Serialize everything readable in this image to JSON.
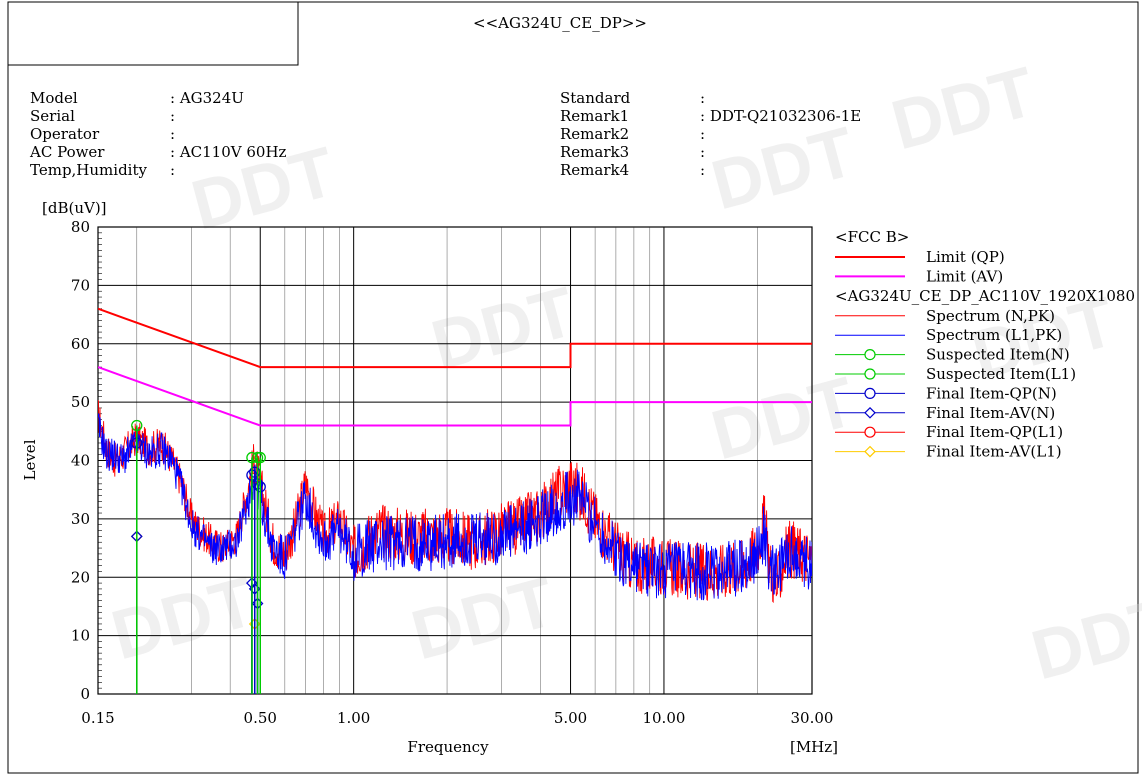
{
  "header": {
    "title": "<<AG324U_CE_DP>>"
  },
  "info_left": [
    {
      "label": "Model",
      "value": ": AG324U"
    },
    {
      "label": "Serial",
      "value": ":"
    },
    {
      "label": "Operator",
      "value": ":"
    },
    {
      "label": "AC Power",
      "value": ": AC110V 60Hz"
    },
    {
      "label": "Temp,Humidity",
      "value": ":"
    }
  ],
  "info_right": [
    {
      "label": "Standard",
      "value": ":"
    },
    {
      "label": "Remark1",
      "value": ": DDT-Q21032306-1E"
    },
    {
      "label": "Remark2",
      "value": ":"
    },
    {
      "label": "Remark3",
      "value": ":"
    },
    {
      "label": "Remark4",
      "value": ":"
    }
  ],
  "watermark": "DDT",
  "colors": {
    "limit_qp": "#ff0000",
    "limit_av": "#ff00ff",
    "spectrum_n": "#ff0000",
    "spectrum_l1": "#0000ff",
    "suspected": "#00cc00",
    "final_qp_n": "#0000cc",
    "final_av_n": "#0000cc",
    "final_qp_l1": "#ff0000",
    "final_av_l1": "#ffcc00"
  },
  "chart_data": {
    "type": "line",
    "xscale": "log",
    "xlim": [
      0.15,
      30
    ],
    "ylim": [
      0,
      80
    ],
    "yunit": "[dB(uV)]",
    "ylabel": "Level",
    "xlabel": "Frequency",
    "xunit": "[MHz]",
    "yticks": [
      0,
      10,
      20,
      30,
      40,
      50,
      60,
      70,
      80
    ],
    "xticks": [
      {
        "value": 0.15,
        "label": "0.15"
      },
      {
        "value": 0.5,
        "label": "0.50"
      },
      {
        "value": 1,
        "label": "1.00"
      },
      {
        "value": 5,
        "label": "5.00"
      },
      {
        "value": 10,
        "label": "10.00"
      },
      {
        "value": 30,
        "label": "30.00"
      }
    ],
    "legend_groups": [
      {
        "title": "<FCC B>",
        "entries": [
          {
            "name": "Limit (QP)",
            "style": "thick",
            "color": "#ff0000"
          },
          {
            "name": "Limit (AV)",
            "style": "thick",
            "color": "#ff00ff"
          }
        ]
      },
      {
        "title": "<AG324U_CE_DP_AC110V_1920X1080",
        "entries": [
          {
            "name": "Spectrum (N,PK)",
            "style": "thin",
            "color": "#ff0000"
          },
          {
            "name": "Spectrum (L1,PK)",
            "style": "thin",
            "color": "#0000ff"
          },
          {
            "name": "Suspected Item(N)",
            "style": "circle",
            "color": "#00cc00"
          },
          {
            "name": "Suspected Item(L1)",
            "style": "circle",
            "color": "#00cc00"
          },
          {
            "name": "Final Item-QP(N)",
            "style": "circle",
            "color": "#0000cc"
          },
          {
            "name": "Final Item-AV(N)",
            "style": "diamond",
            "color": "#0000cc"
          },
          {
            "name": "Final Item-QP(L1)",
            "style": "circle",
            "color": "#ff0000"
          },
          {
            "name": "Final Item-AV(L1)",
            "style": "diamond",
            "color": "#ffcc00"
          }
        ]
      }
    ],
    "limits": [
      {
        "name": "Limit (QP)",
        "color": "#ff0000",
        "points": [
          [
            0.15,
            66
          ],
          [
            0.5,
            56
          ],
          [
            5,
            56
          ],
          [
            5,
            60
          ],
          [
            30,
            60
          ]
        ]
      },
      {
        "name": "Limit (AV)",
        "color": "#ff00ff",
        "points": [
          [
            0.15,
            56
          ],
          [
            0.5,
            46
          ],
          [
            5,
            46
          ],
          [
            5,
            50
          ],
          [
            30,
            50
          ]
        ]
      }
    ],
    "spectrum_n_envelope": [
      [
        0.15,
        48
      ],
      [
        0.16,
        42
      ],
      [
        0.17,
        40
      ],
      [
        0.18,
        41
      ],
      [
        0.2,
        44
      ],
      [
        0.22,
        42
      ],
      [
        0.24,
        43
      ],
      [
        0.26,
        40
      ],
      [
        0.28,
        36
      ],
      [
        0.3,
        30
      ],
      [
        0.32,
        28
      ],
      [
        0.35,
        26
      ],
      [
        0.38,
        25
      ],
      [
        0.42,
        27
      ],
      [
        0.45,
        34
      ],
      [
        0.48,
        40
      ],
      [
        0.5,
        36
      ],
      [
        0.52,
        32
      ],
      [
        0.55,
        26
      ],
      [
        0.6,
        24
      ],
      [
        0.65,
        29
      ],
      [
        0.7,
        36
      ],
      [
        0.75,
        31
      ],
      [
        0.8,
        27
      ],
      [
        0.9,
        30
      ],
      [
        1.0,
        24
      ],
      [
        1.2,
        28
      ],
      [
        1.5,
        27
      ],
      [
        2.0,
        27
      ],
      [
        2.5,
        26
      ],
      [
        3.0,
        28
      ],
      [
        3.5,
        29
      ],
      [
        4.0,
        31
      ],
      [
        4.5,
        34
      ],
      [
        5.0,
        36
      ],
      [
        5.5,
        34
      ],
      [
        6.0,
        30
      ],
      [
        7.0,
        25
      ],
      [
        8.0,
        22
      ],
      [
        10.0,
        22
      ],
      [
        12.0,
        21
      ],
      [
        15.0,
        21
      ],
      [
        18.0,
        22
      ],
      [
        20.0,
        25
      ],
      [
        21.0,
        30
      ],
      [
        22.0,
        22
      ],
      [
        23.0,
        18
      ],
      [
        25.0,
        25
      ],
      [
        28.0,
        24
      ],
      [
        30.0,
        23
      ]
    ],
    "spectrum_l1_envelope": [
      [
        0.15,
        46
      ],
      [
        0.16,
        41
      ],
      [
        0.17,
        41
      ],
      [
        0.18,
        40
      ],
      [
        0.2,
        43
      ],
      [
        0.22,
        41
      ],
      [
        0.24,
        42
      ],
      [
        0.26,
        40
      ],
      [
        0.28,
        35
      ],
      [
        0.3,
        29
      ],
      [
        0.32,
        27
      ],
      [
        0.35,
        25
      ],
      [
        0.38,
        25
      ],
      [
        0.42,
        26
      ],
      [
        0.45,
        32
      ],
      [
        0.48,
        38
      ],
      [
        0.5,
        34
      ],
      [
        0.52,
        30
      ],
      [
        0.55,
        25
      ],
      [
        0.6,
        23
      ],
      [
        0.65,
        28
      ],
      [
        0.7,
        34
      ],
      [
        0.75,
        29
      ],
      [
        0.8,
        26
      ],
      [
        0.9,
        28
      ],
      [
        1.0,
        24
      ],
      [
        1.2,
        26
      ],
      [
        1.5,
        26
      ],
      [
        2.0,
        26
      ],
      [
        2.5,
        26
      ],
      [
        3.0,
        27
      ],
      [
        3.5,
        28
      ],
      [
        4.0,
        30
      ],
      [
        4.5,
        32
      ],
      [
        5.0,
        34
      ],
      [
        5.5,
        33
      ],
      [
        6.0,
        29
      ],
      [
        7.0,
        24
      ],
      [
        8.0,
        22
      ],
      [
        10.0,
        21
      ],
      [
        12.0,
        21
      ],
      [
        15.0,
        21
      ],
      [
        18.0,
        22
      ],
      [
        20.0,
        24
      ],
      [
        21.0,
        28
      ],
      [
        22.0,
        21
      ],
      [
        23.0,
        20
      ],
      [
        25.0,
        24
      ],
      [
        28.0,
        23
      ],
      [
        30.0,
        22
      ]
    ],
    "suspected_items": [
      [
        0.2,
        46
      ],
      [
        0.47,
        40.5
      ],
      [
        0.49,
        40.5
      ],
      [
        0.5,
        40.5
      ]
    ],
    "final_qp_n": [
      [
        0.2,
        43
      ],
      [
        0.47,
        37.5
      ],
      [
        0.48,
        38
      ],
      [
        0.49,
        36
      ],
      [
        0.5,
        35.5
      ]
    ],
    "final_av_n": [
      [
        0.2,
        27
      ],
      [
        0.47,
        19
      ],
      [
        0.48,
        18
      ],
      [
        0.49,
        15.5
      ]
    ],
    "final_qp_l1": [
      [
        0.2,
        43
      ],
      [
        0.48,
        37
      ]
    ],
    "final_av_l1": [
      [
        0.2,
        27
      ],
      [
        0.48,
        12
      ]
    ]
  }
}
